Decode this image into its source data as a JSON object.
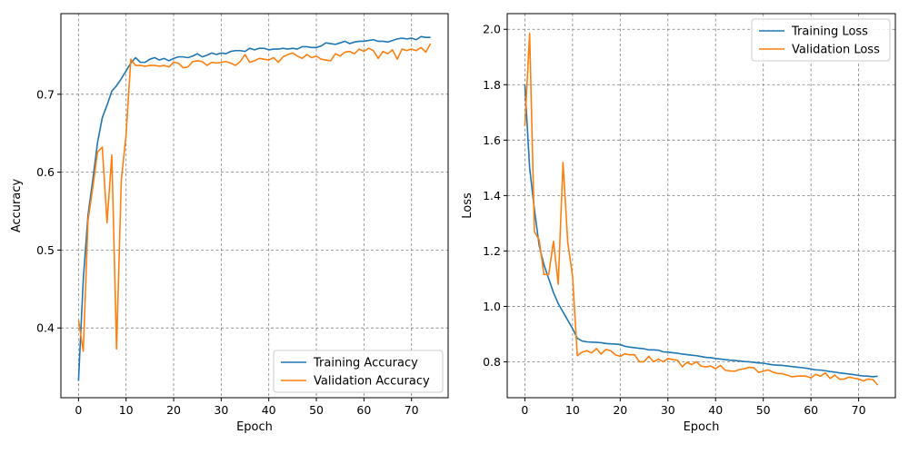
{
  "colors": {
    "training": "#1f77b4",
    "validation": "#ff7f0e",
    "grid": "#808080"
  },
  "chart_data": [
    {
      "type": "line",
      "xlabel": "Epoch",
      "ylabel": "Accuracy",
      "xlim": [
        -3.7,
        77.7
      ],
      "ylim": [
        0.3105,
        0.8035
      ],
      "xticks": [
        0,
        10,
        20,
        30,
        40,
        50,
        60,
        70
      ],
      "yticks": [
        0.4,
        0.5,
        0.6,
        0.7
      ],
      "ytick_labels": [
        "0.4",
        "0.5",
        "0.6",
        "0.7"
      ],
      "grid": true,
      "legend_position": "bottom-right",
      "series": [
        {
          "name": "Training Accuracy",
          "color_key": "training",
          "values": [
            0.332,
            0.462,
            0.545,
            0.59,
            0.638,
            0.67,
            0.686,
            0.704,
            0.711,
            0.72,
            0.73,
            0.74,
            0.747,
            0.741,
            0.741,
            0.745,
            0.747,
            0.744,
            0.746,
            0.743,
            0.746,
            0.748,
            0.748,
            0.747,
            0.749,
            0.752,
            0.748,
            0.75,
            0.753,
            0.751,
            0.753,
            0.752,
            0.755,
            0.756,
            0.756,
            0.755,
            0.759,
            0.757,
            0.759,
            0.759,
            0.757,
            0.758,
            0.758,
            0.759,
            0.758,
            0.759,
            0.758,
            0.761,
            0.761,
            0.76,
            0.76,
            0.762,
            0.766,
            0.765,
            0.764,
            0.766,
            0.768,
            0.765,
            0.767,
            0.768,
            0.768,
            0.769,
            0.77,
            0.768,
            0.768,
            0.767,
            0.769,
            0.771,
            0.772,
            0.771,
            0.772,
            0.77,
            0.774,
            0.773,
            0.773
          ]
        },
        {
          "name": "Validation Accuracy",
          "color_key": "validation",
          "values": [
            0.41,
            0.37,
            0.538,
            0.58,
            0.626,
            0.632,
            0.535,
            0.622,
            0.373,
            0.59,
            0.648,
            0.745,
            0.737,
            0.737,
            0.736,
            0.737,
            0.737,
            0.736,
            0.737,
            0.735,
            0.741,
            0.74,
            0.734,
            0.735,
            0.742,
            0.743,
            0.742,
            0.737,
            0.741,
            0.74,
            0.741,
            0.742,
            0.74,
            0.737,
            0.742,
            0.751,
            0.741,
            0.743,
            0.746,
            0.745,
            0.744,
            0.747,
            0.741,
            0.748,
            0.751,
            0.753,
            0.749,
            0.746,
            0.751,
            0.747,
            0.749,
            0.745,
            0.744,
            0.743,
            0.752,
            0.749,
            0.754,
            0.755,
            0.752,
            0.758,
            0.755,
            0.759,
            0.756,
            0.746,
            0.755,
            0.752,
            0.757,
            0.745,
            0.758,
            0.756,
            0.758,
            0.756,
            0.76,
            0.754,
            0.765
          ]
        }
      ]
    },
    {
      "type": "line",
      "xlabel": "Epoch",
      "ylabel": "Loss",
      "xlim": [
        -3.7,
        77.7
      ],
      "ylim": [
        0.6705,
        2.0565
      ],
      "xticks": [
        0,
        10,
        20,
        30,
        40,
        50,
        60,
        70
      ],
      "yticks": [
        0.8,
        1.0,
        1.2,
        1.4,
        1.6,
        1.8,
        2.0
      ],
      "ytick_labels": [
        "0.8",
        "1.0",
        "1.2",
        "1.4",
        "1.6",
        "1.8",
        "2.0"
      ],
      "grid": true,
      "legend_position": "top-right",
      "series": [
        {
          "name": "Training Loss",
          "color_key": "training",
          "values": [
            1.8,
            1.5,
            1.35,
            1.22,
            1.15,
            1.1,
            1.05,
            1.01,
            0.98,
            0.95,
            0.92,
            0.885,
            0.875,
            0.872,
            0.871,
            0.87,
            0.869,
            0.866,
            0.865,
            0.864,
            0.862,
            0.856,
            0.853,
            0.851,
            0.849,
            0.847,
            0.843,
            0.843,
            0.842,
            0.836,
            0.835,
            0.833,
            0.831,
            0.828,
            0.826,
            0.824,
            0.822,
            0.819,
            0.816,
            0.815,
            0.812,
            0.81,
            0.808,
            0.806,
            0.805,
            0.803,
            0.801,
            0.8,
            0.798,
            0.796,
            0.795,
            0.792,
            0.789,
            0.788,
            0.787,
            0.785,
            0.783,
            0.781,
            0.779,
            0.777,
            0.774,
            0.771,
            0.77,
            0.768,
            0.765,
            0.763,
            0.76,
            0.758,
            0.756,
            0.754,
            0.751,
            0.749,
            0.748,
            0.746,
            0.748
          ]
        },
        {
          "name": "Validation Loss",
          "color_key": "validation",
          "values": [
            1.65,
            1.985,
            1.27,
            1.24,
            1.115,
            1.115,
            1.235,
            1.08,
            1.52,
            1.23,
            1.11,
            0.822,
            0.835,
            0.84,
            0.832,
            0.848,
            0.828,
            0.845,
            0.84,
            0.825,
            0.82,
            0.829,
            0.825,
            0.826,
            0.8,
            0.8,
            0.82,
            0.8,
            0.81,
            0.8,
            0.812,
            0.808,
            0.806,
            0.782,
            0.798,
            0.79,
            0.8,
            0.784,
            0.782,
            0.785,
            0.775,
            0.787,
            0.77,
            0.767,
            0.766,
            0.772,
            0.775,
            0.78,
            0.779,
            0.762,
            0.766,
            0.771,
            0.763,
            0.758,
            0.757,
            0.752,
            0.746,
            0.748,
            0.749,
            0.748,
            0.742,
            0.755,
            0.748,
            0.76,
            0.74,
            0.752,
            0.737,
            0.738,
            0.745,
            0.741,
            0.738,
            0.731,
            0.738,
            0.736,
            0.716
          ]
        }
      ]
    }
  ]
}
